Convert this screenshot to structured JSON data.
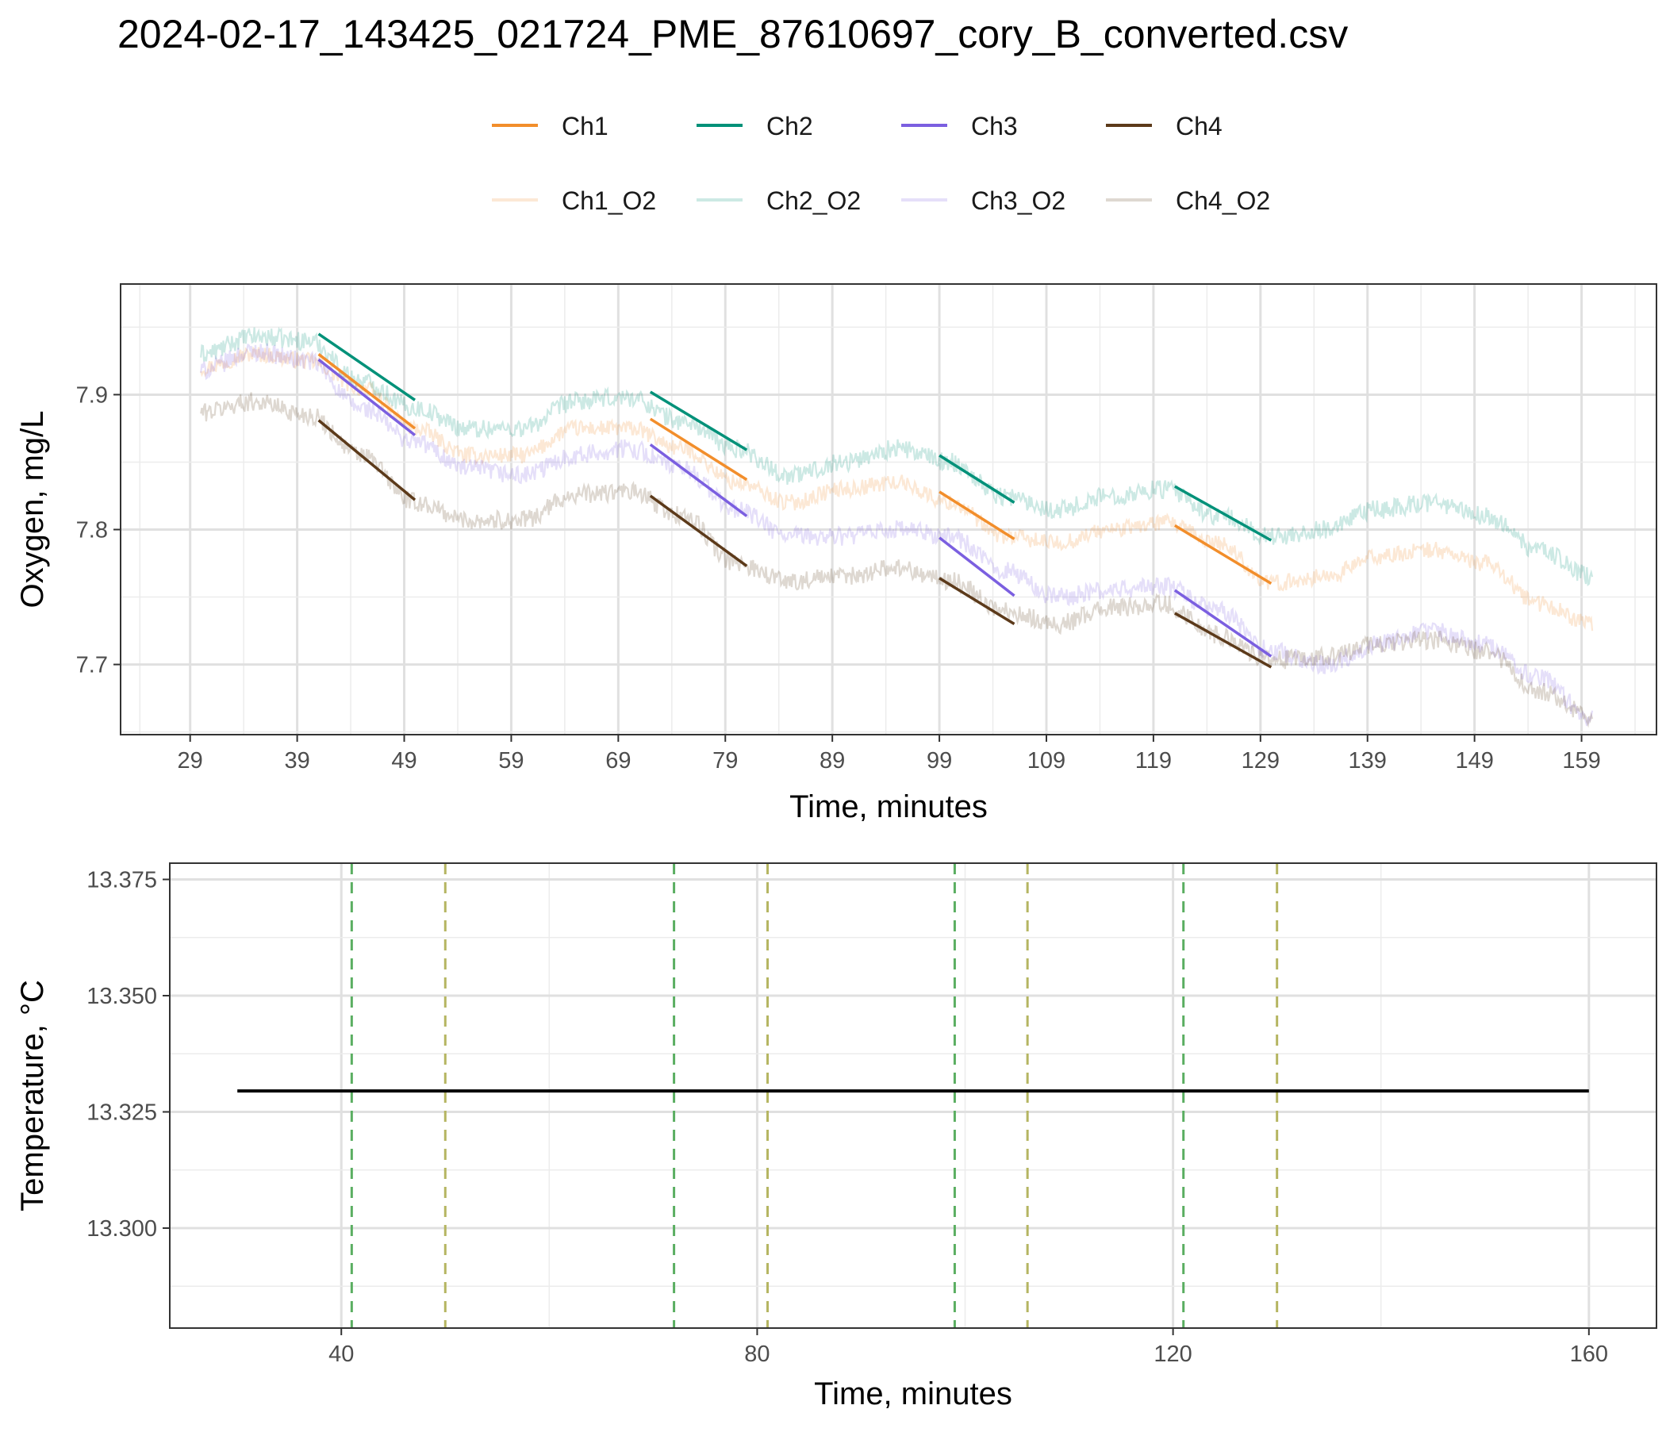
{
  "title": "2024-02-17_143425_021724_PME_87610697_cory_B_converted.csv",
  "legend": {
    "row1": [
      {
        "label": "Ch1",
        "color": "#F28E2B",
        "alpha": 1
      },
      {
        "label": "Ch2",
        "color": "#009179",
        "alpha": 1
      },
      {
        "label": "Ch3",
        "color": "#7B5FE0",
        "alpha": 1
      },
      {
        "label": "Ch4",
        "color": "#5C3A1A",
        "alpha": 1
      }
    ],
    "row2": [
      {
        "label": "Ch1_O2",
        "color": "#F28E2B",
        "alpha": 0.2
      },
      {
        "label": "Ch2_O2",
        "color": "#009179",
        "alpha": 0.2
      },
      {
        "label": "Ch3_O2",
        "color": "#7B5FE0",
        "alpha": 0.2
      },
      {
        "label": "Ch4_O2",
        "color": "#5C3A1A",
        "alpha": 0.2
      }
    ]
  },
  "chart_data": [
    {
      "type": "line",
      "panel": "oxygen",
      "xlabel": "Time, minutes",
      "ylabel": "Oxygen, mg/L",
      "xlim": [
        22.5,
        166
      ],
      "ylim": [
        7.648,
        7.982
      ],
      "x_ticks": [
        29,
        39,
        49,
        59,
        69,
        79,
        89,
        99,
        109,
        119,
        129,
        139,
        149,
        159
      ],
      "y_ticks": [
        7.7,
        7.8,
        7.9
      ],
      "y_tick_labels": [
        "7.7",
        "7.8",
        "7.9"
      ],
      "grid": true,
      "raw_series": [
        {
          "name": "Ch1_O2",
          "color": "#F28E2B",
          "alpha": 0.2,
          "noise": 0.006,
          "points": [
            [
              30,
              7.92
            ],
            [
              35,
              7.93
            ],
            [
              40,
              7.925
            ],
            [
              45,
              7.905
            ],
            [
              50,
              7.875
            ],
            [
              55,
              7.855
            ],
            [
              60,
              7.855
            ],
            [
              65,
              7.875
            ],
            [
              70,
              7.875
            ],
            [
              75,
              7.86
            ],
            [
              80,
              7.835
            ],
            [
              85,
              7.82
            ],
            [
              90,
              7.83
            ],
            [
              95,
              7.835
            ],
            [
              100,
              7.82
            ],
            [
              105,
              7.795
            ],
            [
              110,
              7.79
            ],
            [
              115,
              7.8
            ],
            [
              120,
              7.805
            ],
            [
              125,
              7.79
            ],
            [
              130,
              7.76
            ],
            [
              135,
              7.765
            ],
            [
              140,
              7.78
            ],
            [
              145,
              7.785
            ],
            [
              150,
              7.775
            ],
            [
              155,
              7.745
            ],
            [
              160,
              7.73
            ]
          ]
        },
        {
          "name": "Ch2_O2",
          "color": "#009179",
          "alpha": 0.2,
          "noise": 0.007,
          "points": [
            [
              30,
              7.93
            ],
            [
              35,
              7.943
            ],
            [
              40,
              7.94
            ],
            [
              45,
              7.91
            ],
            [
              50,
              7.89
            ],
            [
              55,
              7.875
            ],
            [
              60,
              7.875
            ],
            [
              65,
              7.895
            ],
            [
              70,
              7.898
            ],
            [
              75,
              7.88
            ],
            [
              80,
              7.86
            ],
            [
              85,
              7.84
            ],
            [
              90,
              7.85
            ],
            [
              95,
              7.86
            ],
            [
              100,
              7.85
            ],
            [
              105,
              7.825
            ],
            [
              110,
              7.815
            ],
            [
              115,
              7.825
            ],
            [
              120,
              7.83
            ],
            [
              125,
              7.81
            ],
            [
              130,
              7.795
            ],
            [
              135,
              7.8
            ],
            [
              140,
              7.815
            ],
            [
              145,
              7.82
            ],
            [
              150,
              7.81
            ],
            [
              155,
              7.785
            ],
            [
              160,
              7.765
            ]
          ]
        },
        {
          "name": "Ch3_O2",
          "color": "#7B5FE0",
          "alpha": 0.2,
          "noise": 0.007,
          "points": [
            [
              30,
              7.918
            ],
            [
              35,
              7.932
            ],
            [
              40,
              7.925
            ],
            [
              45,
              7.89
            ],
            [
              50,
              7.865
            ],
            [
              55,
              7.845
            ],
            [
              60,
              7.84
            ],
            [
              65,
              7.855
            ],
            [
              70,
              7.86
            ],
            [
              75,
              7.845
            ],
            [
              80,
              7.815
            ],
            [
              85,
              7.795
            ],
            [
              90,
              7.795
            ],
            [
              95,
              7.8
            ],
            [
              100,
              7.795
            ],
            [
              105,
              7.77
            ],
            [
              110,
              7.75
            ],
            [
              115,
              7.755
            ],
            [
              120,
              7.758
            ],
            [
              125,
              7.74
            ],
            [
              130,
              7.71
            ],
            [
              135,
              7.7
            ],
            [
              140,
              7.715
            ],
            [
              145,
              7.725
            ],
            [
              150,
              7.715
            ],
            [
              155,
              7.69
            ],
            [
              160,
              7.66
            ]
          ]
        },
        {
          "name": "Ch4_O2",
          "color": "#5C3A1A",
          "alpha": 0.2,
          "noise": 0.007,
          "points": [
            [
              30,
              7.887
            ],
            [
              35,
              7.895
            ],
            [
              40,
              7.885
            ],
            [
              45,
              7.855
            ],
            [
              50,
              7.82
            ],
            [
              55,
              7.807
            ],
            [
              60,
              7.807
            ],
            [
              65,
              7.826
            ],
            [
              70,
              7.828
            ],
            [
              75,
              7.81
            ],
            [
              80,
              7.775
            ],
            [
              85,
              7.762
            ],
            [
              90,
              7.765
            ],
            [
              95,
              7.772
            ],
            [
              100,
              7.762
            ],
            [
              105,
              7.74
            ],
            [
              110,
              7.73
            ],
            [
              115,
              7.742
            ],
            [
              120,
              7.745
            ],
            [
              125,
              7.722
            ],
            [
              130,
              7.703
            ],
            [
              135,
              7.705
            ],
            [
              140,
              7.715
            ],
            [
              145,
              7.718
            ],
            [
              150,
              7.71
            ],
            [
              155,
              7.68
            ],
            [
              160,
              7.662
            ]
          ]
        }
      ],
      "fit_series": [
        {
          "name": "Ch1",
          "color": "#F28E2B",
          "segments": [
            [
              [
                41,
                7.93
              ],
              [
                50,
                7.875
              ]
            ],
            [
              [
                72,
                7.882
              ],
              [
                81,
                7.837
              ]
            ],
            [
              [
                99,
                7.828
              ],
              [
                106,
                7.793
              ]
            ],
            [
              [
                121,
                7.803
              ],
              [
                130,
                7.76
              ]
            ]
          ]
        },
        {
          "name": "Ch2",
          "color": "#009179",
          "segments": [
            [
              [
                41,
                7.945
              ],
              [
                50,
                7.896
              ]
            ],
            [
              [
                72,
                7.902
              ],
              [
                81,
                7.859
              ]
            ],
            [
              [
                99,
                7.855
              ],
              [
                106,
                7.82
              ]
            ],
            [
              [
                121,
                7.832
              ],
              [
                130,
                7.792
              ]
            ]
          ]
        },
        {
          "name": "Ch3",
          "color": "#7B5FE0",
          "segments": [
            [
              [
                41,
                7.926
              ],
              [
                50,
                7.87
              ]
            ],
            [
              [
                72,
                7.863
              ],
              [
                81,
                7.81
              ]
            ],
            [
              [
                99,
                7.794
              ],
              [
                106,
                7.751
              ]
            ],
            [
              [
                121,
                7.755
              ],
              [
                130,
                7.706
              ]
            ]
          ]
        },
        {
          "name": "Ch4",
          "color": "#5C3A1A",
          "segments": [
            [
              [
                41,
                7.881
              ],
              [
                50,
                7.822
              ]
            ],
            [
              [
                72,
                7.825
              ],
              [
                81,
                7.773
              ]
            ],
            [
              [
                99,
                7.764
              ],
              [
                106,
                7.73
              ]
            ],
            [
              [
                121,
                7.738
              ],
              [
                130,
                7.698
              ]
            ]
          ]
        }
      ]
    },
    {
      "type": "line",
      "panel": "temperature",
      "xlabel": "Time, minutes",
      "ylabel": "Temperature, °C",
      "xlim": [
        23.5,
        166.5
      ],
      "ylim": [
        13.2785,
        13.3785
      ],
      "x_ticks": [
        40,
        80,
        120,
        160
      ],
      "y_ticks": [
        13.3,
        13.325,
        13.35,
        13.375
      ],
      "y_tick_labels": [
        "13.300",
        "13.325",
        "13.350",
        "13.375"
      ],
      "grid": true,
      "series": [
        {
          "color": "#000000",
          "x": [
            30,
            160
          ],
          "y": [
            13.3295,
            13.3295
          ]
        }
      ],
      "vlines": [
        {
          "x": 41,
          "color": "#5AAE61"
        },
        {
          "x": 50,
          "color": "#B5B561"
        },
        {
          "x": 72,
          "color": "#5AAE61"
        },
        {
          "x": 81,
          "color": "#B5B561"
        },
        {
          "x": 99,
          "color": "#5AAE61"
        },
        {
          "x": 106,
          "color": "#B5B561"
        },
        {
          "x": 121,
          "color": "#5AAE61"
        },
        {
          "x": 130,
          "color": "#B5B561"
        }
      ]
    }
  ]
}
